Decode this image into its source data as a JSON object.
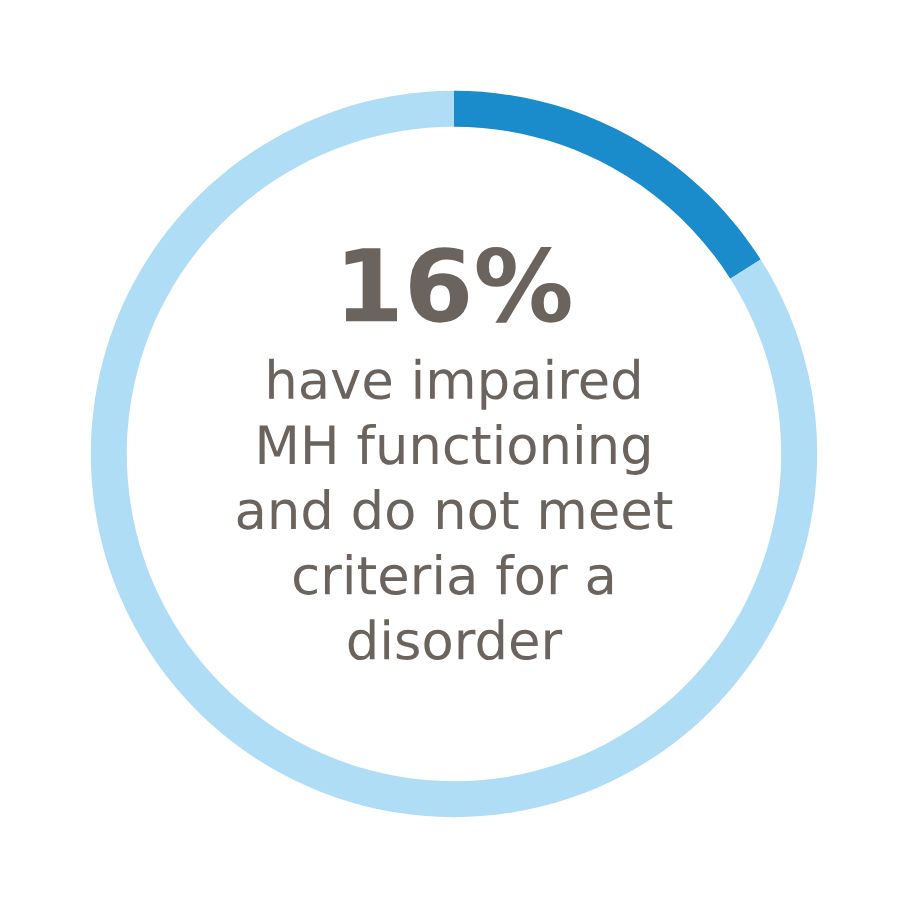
{
  "chart_data": {
    "type": "donut",
    "categories": [
      null,
      null
    ],
    "values": [
      16,
      84
    ],
    "colors": [
      "#1a8bcb",
      "#b0ddf6"
    ],
    "annotations": [
      "16%",
      "have impaired\nMH functioning\nand do not meet\ncriteria for a\ndisorder"
    ]
  }
}
